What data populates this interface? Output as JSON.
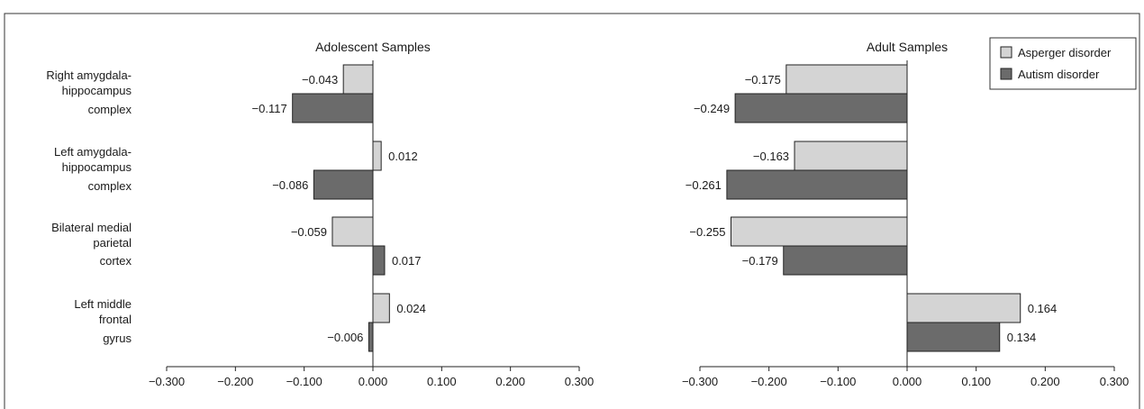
{
  "chart_data": [
    {
      "type": "bar",
      "orientation": "horizontal",
      "title": "Adolescent Samples",
      "categories": [
        [
          "Right amygdala-",
          "hippocampus",
          "complex"
        ],
        [
          "Left amygdala-",
          "hippocampus",
          "complex"
        ],
        [
          "Bilateral medial",
          "parietal",
          "cortex"
        ],
        [
          "Left middle",
          "frontal",
          "gyrus"
        ]
      ],
      "series": [
        {
          "name": "Asperger disorder",
          "color": "#d4d4d4",
          "values": [
            -0.043,
            0.012,
            -0.059,
            0.024
          ],
          "labels": [
            "−0.043",
            "0.012",
            "−0.059",
            "0.024"
          ]
        },
        {
          "name": "Autism disorder",
          "color": "#6b6b6b",
          "values": [
            -0.117,
            -0.086,
            0.017,
            -0.006
          ],
          "labels": [
            "−0.117",
            "−0.086",
            "0.017",
            "−0.006"
          ]
        }
      ],
      "xlim": [
        -0.3,
        0.3
      ],
      "xticks": [
        -0.3,
        -0.2,
        -0.1,
        0.0,
        0.1,
        0.2,
        0.3
      ],
      "xtick_labels": [
        "−0.300",
        "−0.200",
        "−0.100",
        "0.000",
        "0.100",
        "0.200",
        "0.300"
      ],
      "grid": false
    },
    {
      "type": "bar",
      "orientation": "horizontal",
      "title": "Adult Samples",
      "categories": [
        [
          "Right amygdala-",
          "hippocampus",
          "complex"
        ],
        [
          "Left amygdala-",
          "hippocampus",
          "complex"
        ],
        [
          "Bilateral medial",
          "parietal",
          "cortex"
        ],
        [
          "Left middle",
          "frontal",
          "gyrus"
        ]
      ],
      "series": [
        {
          "name": "Asperger disorder",
          "color": "#d4d4d4",
          "values": [
            -0.175,
            -0.163,
            -0.255,
            0.164
          ],
          "labels": [
            "−0.175",
            "−0.163",
            "−0.255",
            "0.164"
          ]
        },
        {
          "name": "Autism disorder",
          "color": "#6b6b6b",
          "values": [
            -0.249,
            -0.261,
            -0.179,
            0.134
          ],
          "labels": [
            "−0.249",
            "−0.261",
            "−0.179",
            "0.134"
          ]
        }
      ],
      "xlim": [
        -0.3,
        0.3
      ],
      "xticks": [
        -0.3,
        -0.2,
        -0.1,
        0.0,
        0.1,
        0.2,
        0.3
      ],
      "xtick_labels": [
        "−0.300",
        "−0.200",
        "−0.100",
        "0.000",
        "0.100",
        "0.200",
        "0.300"
      ],
      "grid": false,
      "legend": {
        "placement": "top-right",
        "entries": [
          {
            "name": "Asperger disorder",
            "color": "#d4d4d4"
          },
          {
            "name": "Autism disorder",
            "color": "#6b6b6b"
          }
        ]
      }
    }
  ]
}
